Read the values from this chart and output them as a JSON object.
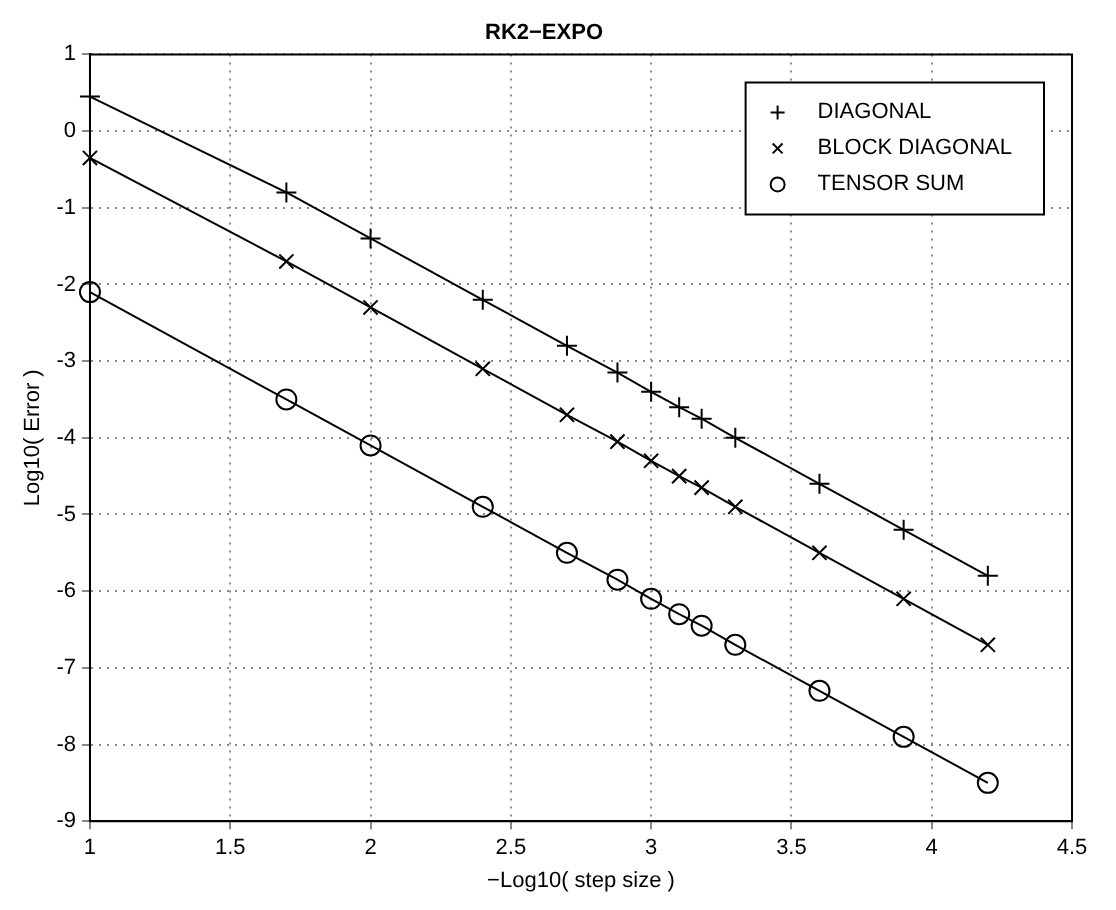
{
  "chart_data": {
    "type": "line",
    "title": "RK2−EXPO",
    "xlabel": "−Log10( step size )",
    "ylabel": "Log10( Error )",
    "xlim": [
      1,
      4.5
    ],
    "xticks": [
      1,
      1.5,
      2,
      2.5,
      3,
      3.5,
      4,
      4.5
    ],
    "ylim": [
      -9,
      1
    ],
    "yticks": [
      -9,
      -8,
      -7,
      -6,
      -5,
      -4,
      -3,
      -2,
      -1,
      0,
      1
    ],
    "grid": true,
    "legend": "top right",
    "x": [
      1,
      1.7,
      2,
      2.4,
      2.7,
      2.88,
      3,
      3.1,
      3.18,
      3.3,
      3.6,
      3.9,
      4.2
    ],
    "series": [
      {
        "name": "DIAGONAL",
        "color": "#000000",
        "marker": "plus",
        "values": [
          0.45,
          -0.8,
          -1.4,
          -2.2,
          -2.8,
          -3.15,
          -3.4,
          -3.6,
          -3.75,
          -4.0,
          -4.6,
          -5.2,
          -5.8
        ]
      },
      {
        "name": "BLOCK DIAGONAL",
        "color": "#000000",
        "marker": "cross",
        "values": [
          -0.35,
          -1.7,
          -2.3,
          -3.1,
          -3.7,
          -4.05,
          -4.3,
          -4.5,
          -4.65,
          -4.9,
          -5.5,
          -6.1,
          -6.7
        ]
      },
      {
        "name": "TENSOR SUM",
        "color": "#000000",
        "marker": "circle",
        "values": [
          -2.1,
          -3.5,
          -4.1,
          -4.9,
          -5.5,
          -5.85,
          -6.1,
          -6.3,
          -6.45,
          -6.7,
          -7.3,
          -7.9,
          -8.5
        ]
      }
    ]
  }
}
